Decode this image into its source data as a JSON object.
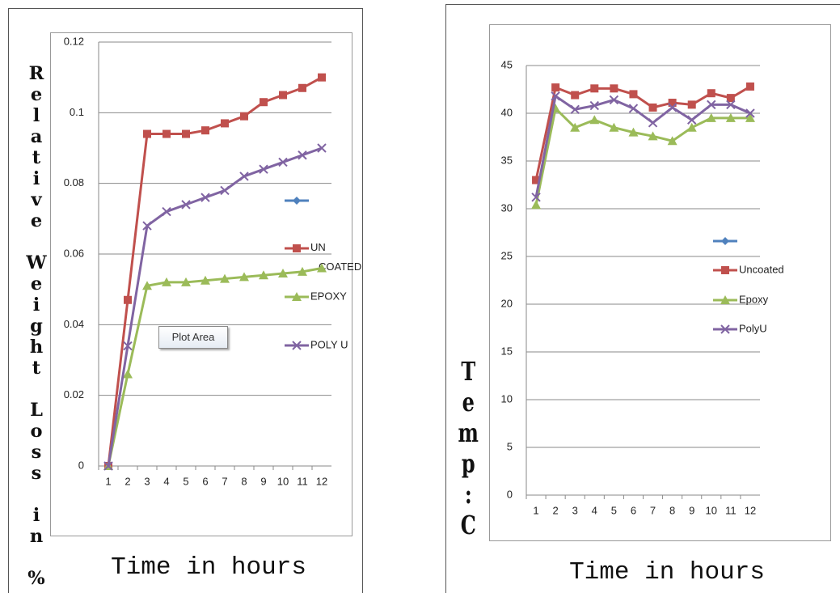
{
  "chart_data": [
    {
      "type": "line",
      "y_label": "Relative Weight Loss in %",
      "x_label": "Time in hours",
      "tooltip": "Plot Area",
      "categories": [
        "1",
        "2",
        "3",
        "4",
        "5",
        "6",
        "7",
        "8",
        "9",
        "10",
        "11",
        "12"
      ],
      "ylim": [
        0,
        0.12
      ],
      "yticks": [
        0,
        0.02,
        0.04,
        0.06,
        0.08,
        0.1,
        0.12
      ],
      "grid": true,
      "series": [
        {
          "name": "UN COATED",
          "color": "#c0504d",
          "marker": "square",
          "values": [
            0,
            0.047,
            0.094,
            0.094,
            0.094,
            0.095,
            0.097,
            0.099,
            0.103,
            0.105,
            0.107,
            0.11
          ]
        },
        {
          "name": "EPOXY",
          "color": "#9bbb59",
          "marker": "triangle",
          "values": [
            0,
            0.026,
            0.051,
            0.052,
            0.052,
            0.0525,
            0.053,
            0.0535,
            0.054,
            0.0545,
            0.055,
            0.056
          ]
        },
        {
          "name": "POLY U",
          "color": "#8064a2",
          "marker": "x",
          "values": [
            0,
            0.034,
            0.068,
            0.072,
            0.074,
            0.076,
            0.078,
            0.082,
            0.084,
            0.086,
            0.088,
            0.09
          ]
        }
      ]
    },
    {
      "type": "line",
      "y_label": "Temp:C",
      "x_label": "Time in hours",
      "categories": [
        "1",
        "2",
        "3",
        "4",
        "5",
        "6",
        "7",
        "8",
        "9",
        "10",
        "11",
        "12"
      ],
      "ylim": [
        0,
        45
      ],
      "yticks": [
        0,
        5,
        10,
        15,
        20,
        25,
        30,
        35,
        40,
        45
      ],
      "grid": true,
      "series": [
        {
          "name": "Uncoated",
          "color": "#c0504d",
          "marker": "square",
          "values": [
            33,
            42.7,
            41.9,
            42.6,
            42.6,
            42.0,
            40.6,
            41.1,
            40.9,
            42.1,
            41.6,
            42.8
          ]
        },
        {
          "name": "Epoxy",
          "color": "#9bbb59",
          "marker": "triangle",
          "values": [
            30.4,
            40.5,
            38.5,
            39.3,
            38.5,
            38.0,
            37.6,
            37.1,
            38.5,
            39.5,
            39.5,
            39.5
          ]
        },
        {
          "name": "PolyU",
          "color": "#8064a2",
          "marker": "x",
          "values": [
            31.2,
            41.8,
            40.4,
            40.8,
            41.4,
            40.5,
            39.0,
            40.6,
            39.3,
            40.9,
            40.9,
            40.0
          ]
        }
      ]
    }
  ]
}
